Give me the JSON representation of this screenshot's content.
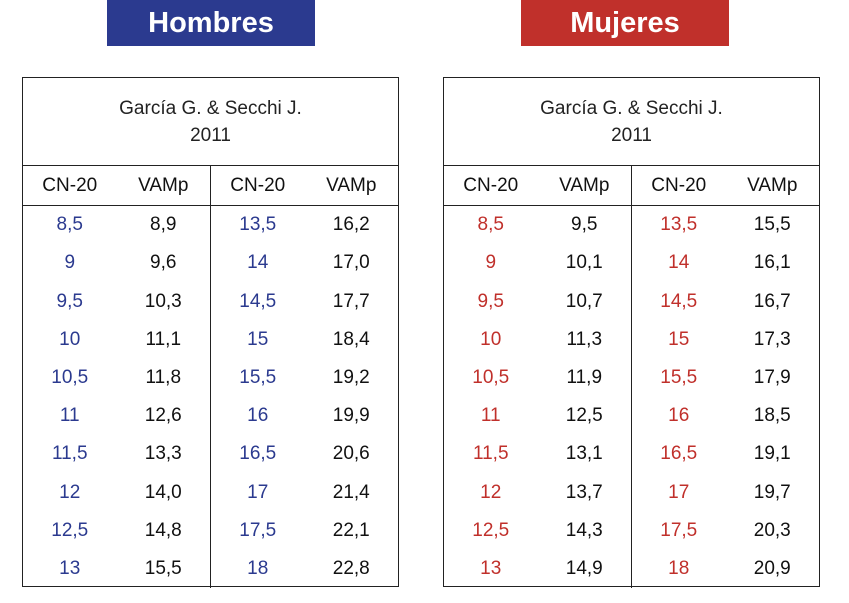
{
  "colors": {
    "men_accent": "#2b3a8f",
    "women_accent": "#c0302b"
  },
  "men": {
    "title": "Hombres",
    "caption_line1": "García G. & Secchi J.",
    "caption_line2": "2011",
    "headers": [
      "CN-20",
      "VAMp",
      "CN-20",
      "VAMp"
    ],
    "left": [
      {
        "cn": "8,5",
        "vamp": "8,9"
      },
      {
        "cn": "9",
        "vamp": "9,6"
      },
      {
        "cn": "9,5",
        "vamp": "10,3"
      },
      {
        "cn": "10",
        "vamp": "11,1"
      },
      {
        "cn": "10,5",
        "vamp": "11,8"
      },
      {
        "cn": "11",
        "vamp": "12,6"
      },
      {
        "cn": "11,5",
        "vamp": "13,3"
      },
      {
        "cn": "12",
        "vamp": "14,0"
      },
      {
        "cn": "12,5",
        "vamp": "14,8"
      },
      {
        "cn": "13",
        "vamp": "15,5"
      }
    ],
    "right": [
      {
        "cn": "13,5",
        "vamp": "16,2"
      },
      {
        "cn": "14",
        "vamp": "17,0"
      },
      {
        "cn": "14,5",
        "vamp": "17,7"
      },
      {
        "cn": "15",
        "vamp": "18,4"
      },
      {
        "cn": "15,5",
        "vamp": "19,2"
      },
      {
        "cn": "16",
        "vamp": "19,9"
      },
      {
        "cn": "16,5",
        "vamp": "20,6"
      },
      {
        "cn": "17",
        "vamp": "21,4"
      },
      {
        "cn": "17,5",
        "vamp": "22,1"
      },
      {
        "cn": "18",
        "vamp": "22,8"
      }
    ]
  },
  "women": {
    "title": "Mujeres",
    "caption_line1": "García G. & Secchi J.",
    "caption_line2": "2011",
    "headers": [
      "CN-20",
      "VAMp",
      "CN-20",
      "VAMp"
    ],
    "left": [
      {
        "cn": "8,5",
        "vamp": "9,5"
      },
      {
        "cn": "9",
        "vamp": "10,1"
      },
      {
        "cn": "9,5",
        "vamp": "10,7"
      },
      {
        "cn": "10",
        "vamp": "11,3"
      },
      {
        "cn": "10,5",
        "vamp": "11,9"
      },
      {
        "cn": "11",
        "vamp": "12,5"
      },
      {
        "cn": "11,5",
        "vamp": "13,1"
      },
      {
        "cn": "12",
        "vamp": "13,7"
      },
      {
        "cn": "12,5",
        "vamp": "14,3"
      },
      {
        "cn": "13",
        "vamp": "14,9"
      }
    ],
    "right": [
      {
        "cn": "13,5",
        "vamp": "15,5"
      },
      {
        "cn": "14",
        "vamp": "16,1"
      },
      {
        "cn": "14,5",
        "vamp": "16,7"
      },
      {
        "cn": "15",
        "vamp": "17,3"
      },
      {
        "cn": "15,5",
        "vamp": "17,9"
      },
      {
        "cn": "16",
        "vamp": "18,5"
      },
      {
        "cn": "16,5",
        "vamp": "19,1"
      },
      {
        "cn": "17",
        "vamp": "19,7"
      },
      {
        "cn": "17,5",
        "vamp": "20,3"
      },
      {
        "cn": "18",
        "vamp": "20,9"
      }
    ]
  }
}
